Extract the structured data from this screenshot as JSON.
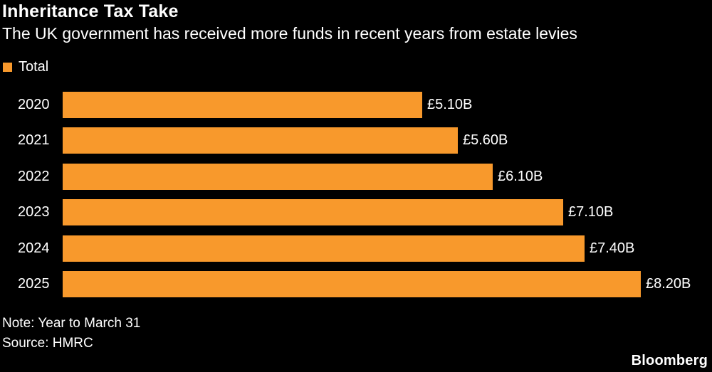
{
  "chart_data": {
    "type": "bar",
    "orientation": "horizontal",
    "title": "Inheritance Tax Take",
    "subtitle": "The UK government has received more funds in recent years from estate levies",
    "legend": [
      {
        "label": "Total",
        "color": "#F8992C"
      }
    ],
    "categories": [
      "2020",
      "2021",
      "2022",
      "2023",
      "2024",
      "2025"
    ],
    "values": [
      5.1,
      5.6,
      6.1,
      7.1,
      7.4,
      8.2
    ],
    "value_labels": [
      "£5.10B",
      "£5.60B",
      "£6.10B",
      "£7.10B",
      "£7.40B",
      "£8.20B"
    ],
    "xlim": [
      0,
      8.2
    ],
    "bar_color": "#F8992C",
    "note": "Note: Year to March 31",
    "source": "Source: HMRC",
    "brand": "Bloomberg"
  }
}
